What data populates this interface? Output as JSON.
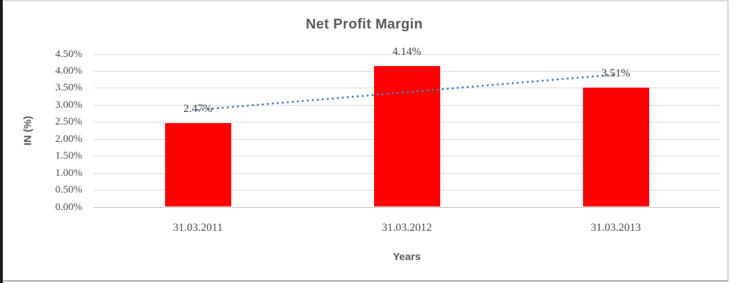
{
  "chart_data": {
    "type": "bar",
    "title": "Net Profit Margin",
    "xlabel": "Years",
    "ylabel": "IN (%)",
    "categories": [
      "31.03.2011",
      "31.03.2012",
      "31.03.2013"
    ],
    "values": [
      2.47,
      4.14,
      3.51
    ],
    "data_labels": [
      "2.47%",
      "4.14%",
      "3.51%"
    ],
    "yticks": [
      "0.00%",
      "0.50%",
      "1.00%",
      "1.50%",
      "2.00%",
      "2.50%",
      "3.00%",
      "3.50%",
      "4.00%",
      "4.50%"
    ],
    "ylim": [
      0,
      4.5
    ],
    "ytick_step": 0.5,
    "grid": true,
    "legend": "none",
    "bar_color": "#FF0000",
    "gridline_color": "#D9D9D9",
    "axis_line_color": "#BFBFBF",
    "text_color": "#595959",
    "trendline": {
      "type": "linear",
      "style": "dotted",
      "color": "#4A7EBB"
    }
  }
}
